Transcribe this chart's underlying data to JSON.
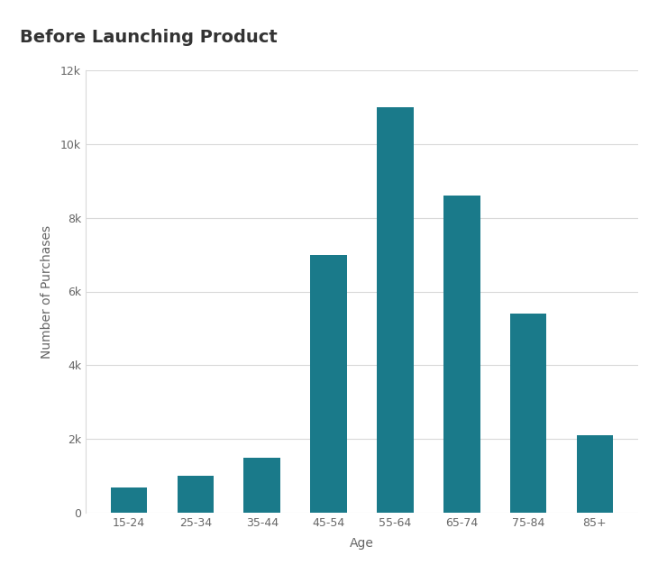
{
  "categories": [
    "15-24",
    "25-34",
    "35-44",
    "45-54",
    "55-64",
    "65-74",
    "75-84",
    "85+"
  ],
  "values": [
    700,
    1000,
    1500,
    7000,
    11000,
    8600,
    5400,
    2100
  ],
  "bar_color": "#1a7a8a",
  "title": "Before Launching Product",
  "xlabel": "Age",
  "ylabel": "Number of Purchases",
  "ylim": [
    0,
    12000
  ],
  "yticks": [
    0,
    2000,
    4000,
    6000,
    8000,
    10000,
    12000
  ],
  "ytick_labels": [
    "0",
    "2k",
    "4k",
    "6k",
    "8k",
    "10k",
    "12k"
  ],
  "background_color": "#ffffff",
  "grid_color": "#d9d9d9",
  "title_fontsize": 14,
  "axis_label_fontsize": 10,
  "tick_fontsize": 9,
  "bar_width": 0.55,
  "title_color": "#333333",
  "label_color": "#666666"
}
